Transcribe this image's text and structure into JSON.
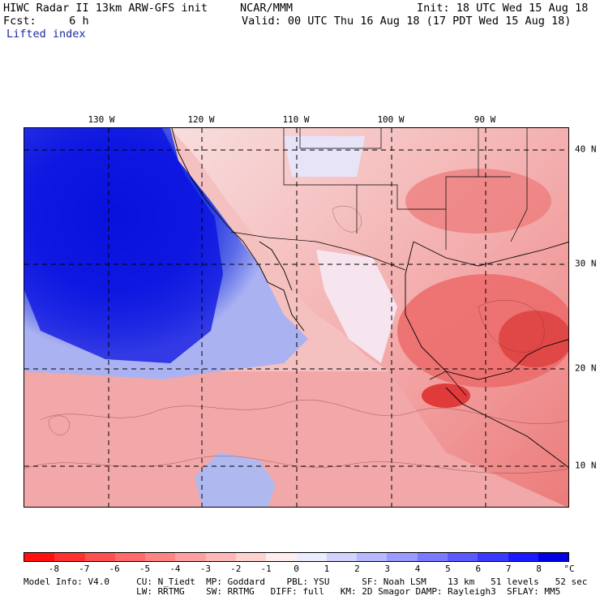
{
  "header": {
    "line1_left": "HIWC Radar II 13km ARW-GFS init",
    "line1_mid": "NCAR/MMM",
    "line1_right": "Init: 18 UTC Wed 15 Aug 18",
    "line2_left": "Fcst:     6 h",
    "line2_right": "Valid: 00 UTC Thu 16 Aug 18 (17 PDT Wed 15 Aug 18)",
    "field_name": "Lifted index"
  },
  "map": {
    "lon_labels": [
      "130 W",
      "120 W",
      "110 W",
      "100 W",
      "90 W"
    ],
    "lat_labels": [
      "40 N",
      "30 N",
      "20 N",
      "10 N"
    ],
    "colors": {
      "ocean_deep": "#1020d8",
      "ocean_mid": "#6070e8",
      "ocean_light": "#b8c0f0",
      "land_light": "#f8d8d8",
      "land_mid": "#f09090",
      "land_strong": "#e05050",
      "grid_line": "#000000",
      "border_line": "#000000"
    }
  },
  "colorbar": {
    "tick_labels": [
      "-8",
      "-7",
      "-6",
      "-5",
      "-4",
      "-3",
      "-2",
      "-1",
      "0",
      "1",
      "2",
      "3",
      "4",
      "5",
      "6",
      "7",
      "8"
    ],
    "unit": "°C",
    "colors": [
      "#ff1010",
      "#ff3030",
      "#ff5050",
      "#ff6a6a",
      "#ff8585",
      "#ffa0a0",
      "#ffb8b8",
      "#ffd2d2",
      "#ffecec",
      "#ececff",
      "#d2d2ff",
      "#b8b8ff",
      "#9a9aff",
      "#7a7aff",
      "#5a5aff",
      "#3a3aff",
      "#1a1aff",
      "#0000e0"
    ]
  },
  "footer": {
    "line1": "Model Info: V4.0     CU: N_Tiedt  MP: Goddard    PBL: YSU      SF: Noah LSM    13 km   51 levels   52 sec",
    "line2": "                     LW: RRTMG    SW: RRTMG   DIFF: full   KM: 2D Smagor DAMP: Rayleigh3  SFLAY: MM5"
  }
}
